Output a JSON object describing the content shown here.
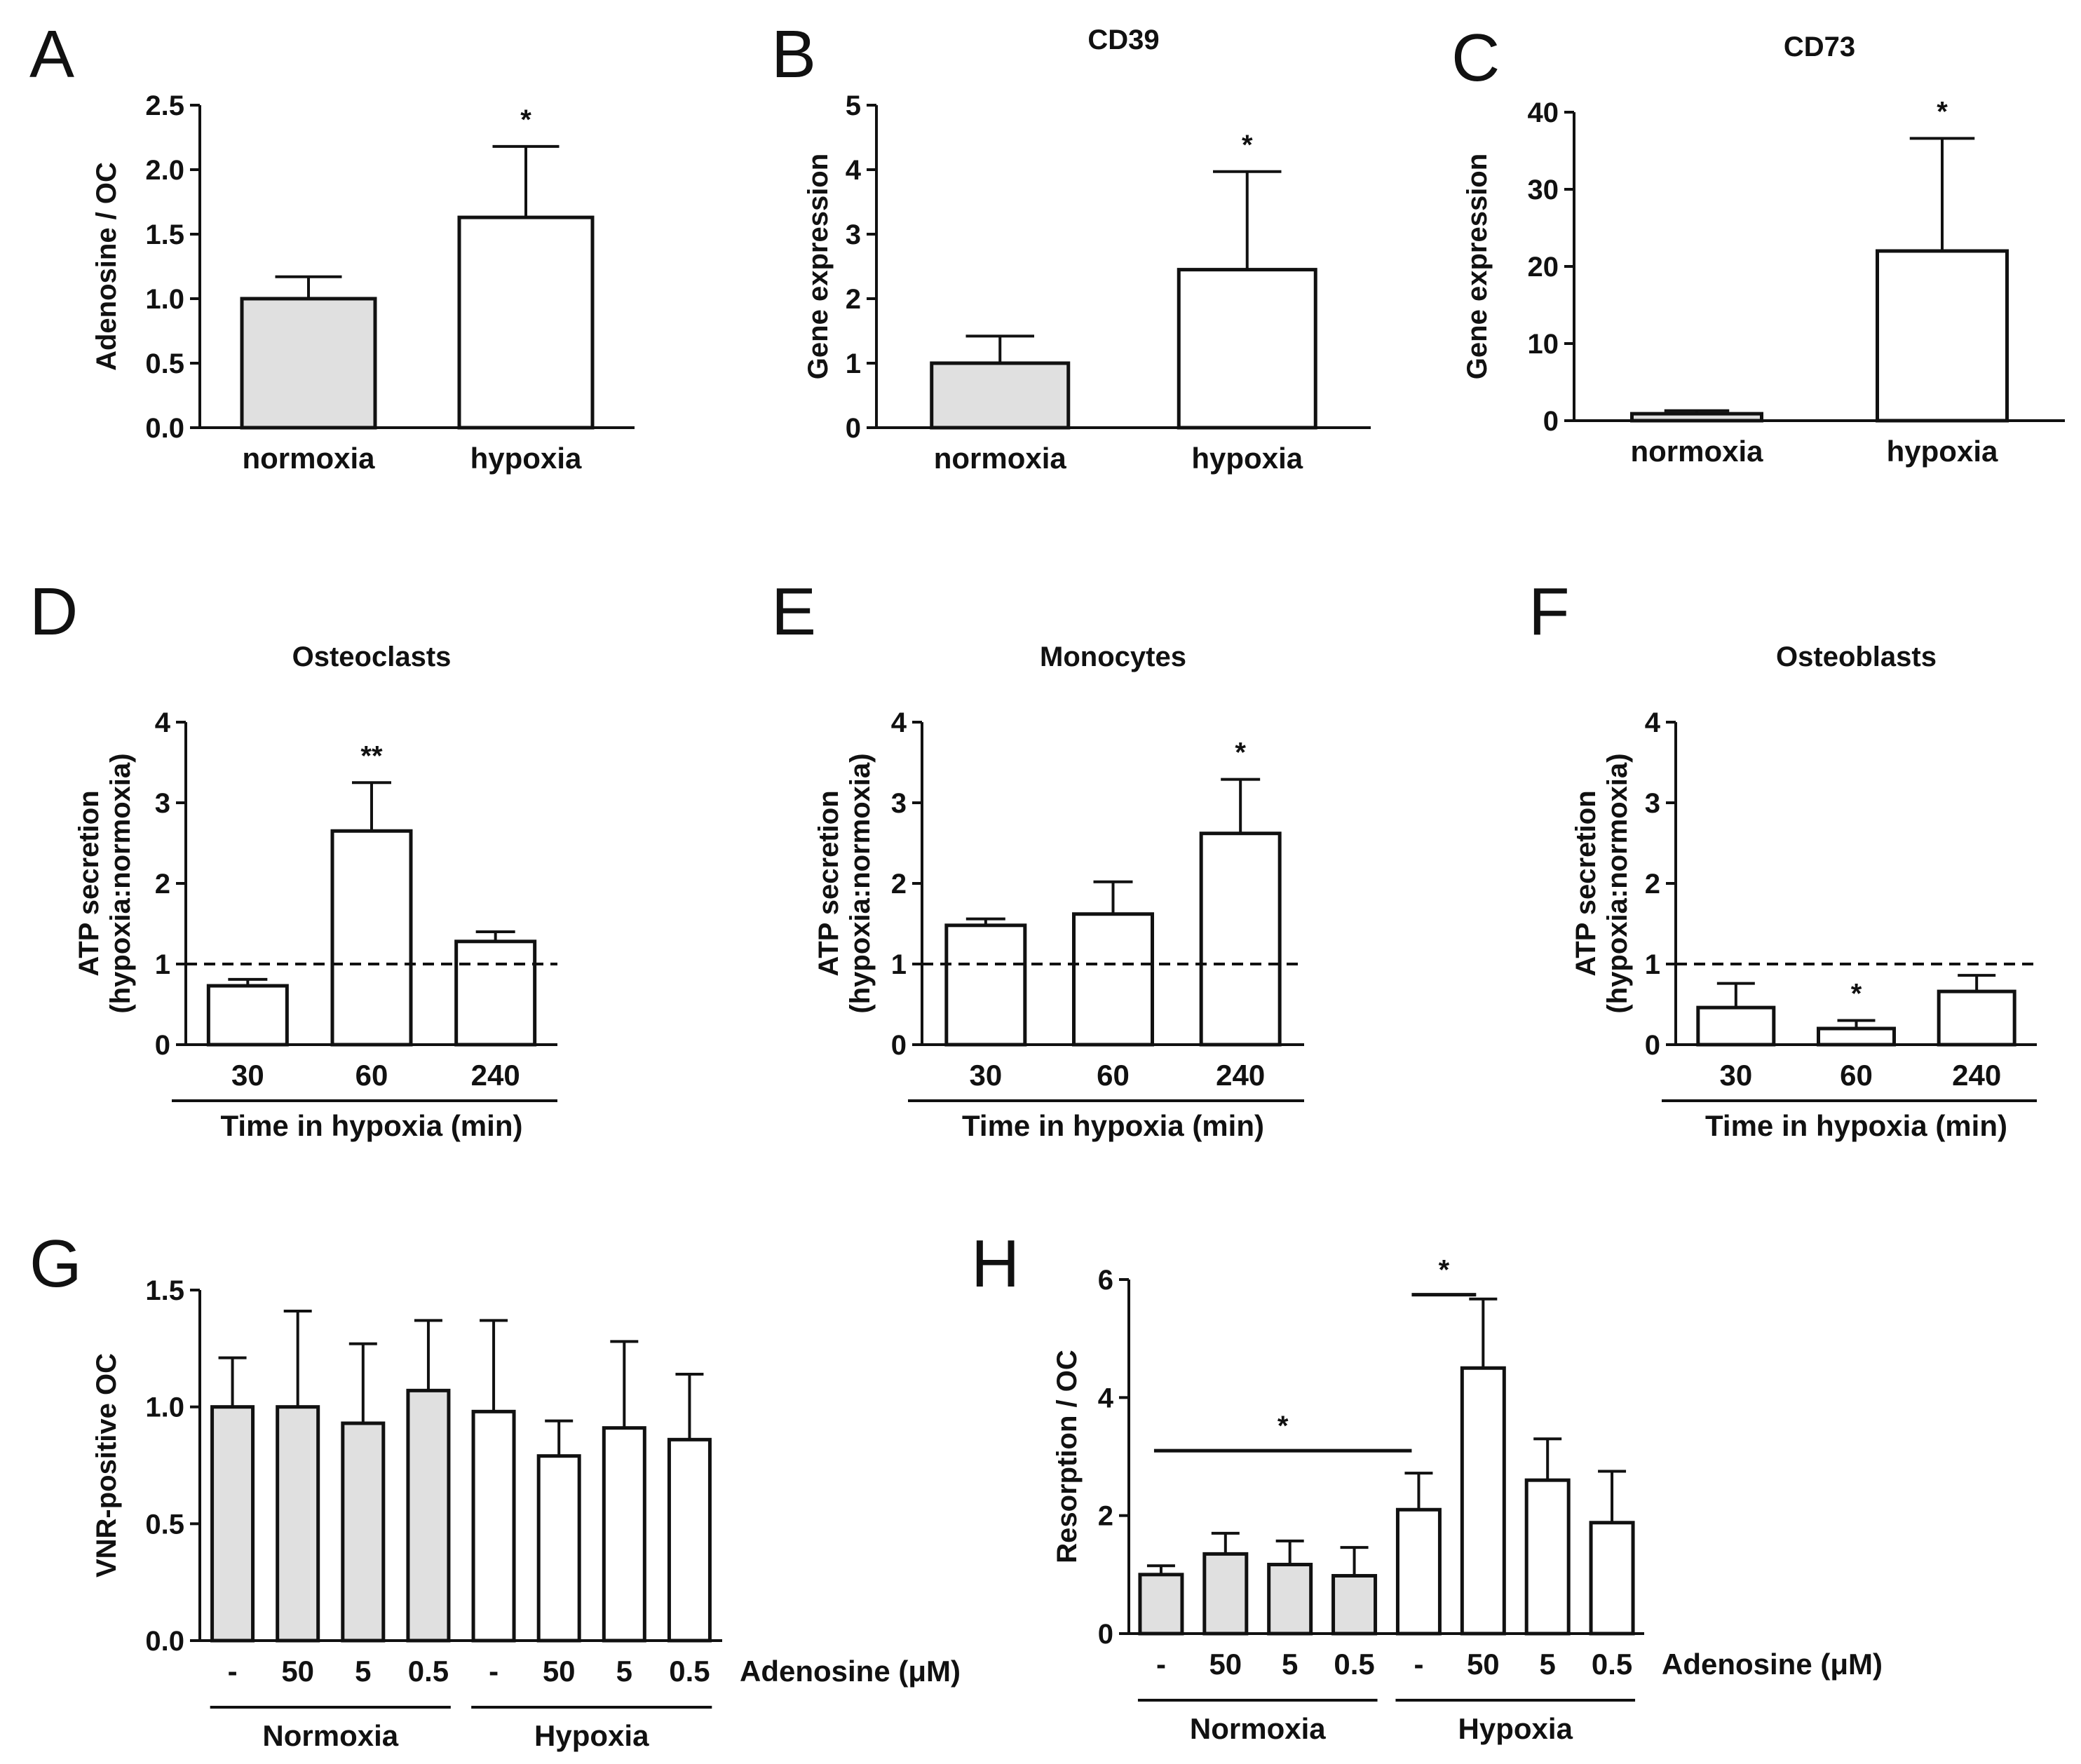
{
  "colors": {
    "normoxia_fill": "#e0e0e0",
    "hypoxia_fill": "#ffffff",
    "stroke": "#111111"
  },
  "chart_data": [
    {
      "panel": "A",
      "type": "bar",
      "title": "",
      "categories": [
        "normoxia",
        "hypoxia"
      ],
      "values": [
        1.0,
        1.63
      ],
      "errors": [
        0.17,
        0.55
      ],
      "fills": [
        "#e0e0e0",
        "#ffffff"
      ],
      "ylabel": "Adenosine / OC",
      "ylabel2": "",
      "xlabel": "",
      "ylim": [
        0,
        2.5
      ],
      "yticks": [
        0.0,
        0.5,
        1.0,
        1.5,
        2.0,
        2.5
      ],
      "tick_decimals": 1,
      "significance": [
        "",
        "*"
      ],
      "reference_line": null,
      "grid": false
    },
    {
      "panel": "B",
      "type": "bar",
      "title": "CD39",
      "categories": [
        "normoxia",
        "hypoxia"
      ],
      "values": [
        1.0,
        2.45
      ],
      "errors": [
        0.42,
        1.52
      ],
      "fills": [
        "#e0e0e0",
        "#ffffff"
      ],
      "ylabel": "Gene expression",
      "ylabel2": "",
      "xlabel": "",
      "ylim": [
        0,
        5
      ],
      "yticks": [
        0,
        1,
        2,
        3,
        4,
        5
      ],
      "tick_decimals": 0,
      "significance": [
        "",
        "*"
      ],
      "reference_line": null,
      "grid": false
    },
    {
      "panel": "C",
      "type": "bar",
      "title": "CD73",
      "categories": [
        "normoxia",
        "hypoxia"
      ],
      "values": [
        0.9,
        22.0
      ],
      "errors": [
        0.4,
        14.6
      ],
      "fills": [
        "#e0e0e0",
        "#ffffff"
      ],
      "ylabel": "Gene expression",
      "ylabel2": "",
      "xlabel": "",
      "ylim": [
        0,
        40
      ],
      "yticks": [
        0,
        10,
        20,
        30,
        40
      ],
      "tick_decimals": 0,
      "significance": [
        "",
        "*"
      ],
      "reference_line": null,
      "grid": false
    },
    {
      "panel": "D",
      "type": "bar",
      "title": "Osteoclasts",
      "categories": [
        "30",
        "60",
        "240"
      ],
      "values": [
        0.73,
        2.65,
        1.28
      ],
      "errors": [
        0.08,
        0.6,
        0.12
      ],
      "fills": [
        "#ffffff",
        "#ffffff",
        "#ffffff"
      ],
      "ylabel": "ATP secretion",
      "ylabel2": "(hypoxia:normoxia)",
      "xlabel": "Time in hypoxia (min)",
      "ylim": [
        0,
        4
      ],
      "yticks": [
        0,
        1,
        2,
        3,
        4
      ],
      "tick_decimals": 0,
      "significance": [
        "",
        "**",
        ""
      ],
      "reference_line": 1,
      "grid": false
    },
    {
      "panel": "E",
      "type": "bar",
      "title": "Monocytes",
      "categories": [
        "30",
        "60",
        "240"
      ],
      "values": [
        1.48,
        1.62,
        2.62
      ],
      "errors": [
        0.08,
        0.4,
        0.67
      ],
      "fills": [
        "#ffffff",
        "#ffffff",
        "#ffffff"
      ],
      "ylabel": "ATP secretion",
      "ylabel2": "(hypoxia:normoxia)",
      "xlabel": "Time in hypoxia (min)",
      "ylim": [
        0,
        4
      ],
      "yticks": [
        0,
        1,
        2,
        3,
        4
      ],
      "tick_decimals": 0,
      "significance": [
        "",
        "",
        "*"
      ],
      "reference_line": 1,
      "grid": false
    },
    {
      "panel": "F",
      "type": "bar",
      "title": "Osteoblasts",
      "categories": [
        "30",
        "60",
        "240"
      ],
      "values": [
        0.46,
        0.2,
        0.66
      ],
      "errors": [
        0.3,
        0.1,
        0.2
      ],
      "fills": [
        "#ffffff",
        "#ffffff",
        "#ffffff"
      ],
      "ylabel": "ATP secretion",
      "ylabel2": "(hypoxia:normoxia)",
      "xlabel": "Time in hypoxia (min)",
      "ylim": [
        0,
        4
      ],
      "yticks": [
        0,
        1,
        2,
        3,
        4
      ],
      "tick_decimals": 0,
      "significance": [
        "",
        "*",
        ""
      ],
      "reference_line": 1,
      "grid": false
    },
    {
      "panel": "G",
      "type": "bar",
      "title": "",
      "categories": [
        "-",
        "50",
        "5",
        "0.5",
        "-",
        "50",
        "5",
        "0.5"
      ],
      "values": [
        1.0,
        1.0,
        0.93,
        1.07,
        0.98,
        0.79,
        0.91,
        0.86
      ],
      "errors": [
        0.21,
        0.41,
        0.34,
        0.3,
        0.39,
        0.15,
        0.37,
        0.28
      ],
      "fills": [
        "#e0e0e0",
        "#e0e0e0",
        "#e0e0e0",
        "#e0e0e0",
        "#ffffff",
        "#ffffff",
        "#ffffff",
        "#ffffff"
      ],
      "ylabel": "VNR-positive OC",
      "ylabel2": "",
      "xlabel": "Adenosine (μM)",
      "groups": [
        "Normoxia",
        "Hypoxia"
      ],
      "ylim": [
        0,
        1.5
      ],
      "yticks": [
        0.0,
        0.5,
        1.0,
        1.5
      ],
      "tick_decimals": 1,
      "significance": [
        "",
        "",
        "",
        "",
        "",
        "",
        "",
        ""
      ],
      "reference_line": null,
      "grid": false
    },
    {
      "panel": "H",
      "type": "bar",
      "title": "",
      "categories": [
        "-",
        "50",
        "5",
        "0.5",
        "-",
        "50",
        "5",
        "0.5"
      ],
      "values": [
        1.0,
        1.35,
        1.17,
        0.98,
        2.1,
        4.5,
        2.6,
        1.88
      ],
      "errors": [
        0.15,
        0.35,
        0.4,
        0.48,
        0.62,
        1.17,
        0.7,
        0.87
      ],
      "fills": [
        "#e0e0e0",
        "#e0e0e0",
        "#e0e0e0",
        "#e0e0e0",
        "#ffffff",
        "#ffffff",
        "#ffffff",
        "#ffffff"
      ],
      "ylabel": "Resorption / OC",
      "ylabel2": "",
      "xlabel": "Adenosine (μM)",
      "groups": [
        "Normoxia",
        "Hypoxia"
      ],
      "ylim": [
        0,
        6
      ],
      "yticks": [
        0,
        2,
        4,
        6
      ],
      "tick_decimals": 0,
      "significance": [
        "",
        "",
        "",
        "",
        "",
        "",
        "",
        ""
      ],
      "reference_line": null,
      "grid": false,
      "brackets": [
        {
          "from": 0,
          "to": 4,
          "label": "*"
        },
        {
          "from": 4,
          "to": 5,
          "label": "*"
        }
      ]
    }
  ]
}
